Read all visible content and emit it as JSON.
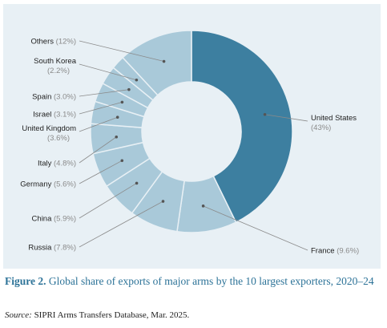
{
  "chart_data": {
    "type": "pie",
    "donut": true,
    "slices": [
      {
        "name": "United States",
        "value": 43,
        "label": "(43%)",
        "color": "#3d7fa0"
      },
      {
        "name": "France",
        "value": 9.6,
        "label": "(9.6%)",
        "color": "#a9c9d9"
      },
      {
        "name": "Russia",
        "value": 7.8,
        "label": "(7.8%)",
        "color": "#a9c9d9"
      },
      {
        "name": "China",
        "value": 5.9,
        "label": "(5.9%)",
        "color": "#a9c9d9"
      },
      {
        "name": "Germany",
        "value": 5.6,
        "label": "(5.6%)",
        "color": "#a9c9d9"
      },
      {
        "name": "Italy",
        "value": 4.8,
        "label": "(4.8%)",
        "color": "#a9c9d9"
      },
      {
        "name": "United Kingdom",
        "value": 3.6,
        "label": "(3.6%)",
        "color": "#a9c9d9"
      },
      {
        "name": "Israel",
        "value": 3.1,
        "label": "(3.1%)",
        "color": "#a9c9d9"
      },
      {
        "name": "Spain",
        "value": 3.0,
        "label": "(3.0%)",
        "color": "#a9c9d9"
      },
      {
        "name": "South Korea",
        "value": 2.2,
        "label": "(2.2%)",
        "color": "#a9c9d9"
      },
      {
        "name": "Others",
        "value": 12,
        "label": "(12%)",
        "color": "#a9c9d9"
      }
    ],
    "colors": {
      "background": "#e8f0f5",
      "leader_line": "#8a8a8a",
      "slice_border": "#e8f0f5"
    }
  },
  "caption": {
    "figure_label": "Figure 2.",
    "text": " Global share of exports of major arms by the 10 largest exporters, 2020–24"
  },
  "source": {
    "label": "Source:",
    "text": " SIPRI Arms Transfers Database, Mar. 2025."
  }
}
